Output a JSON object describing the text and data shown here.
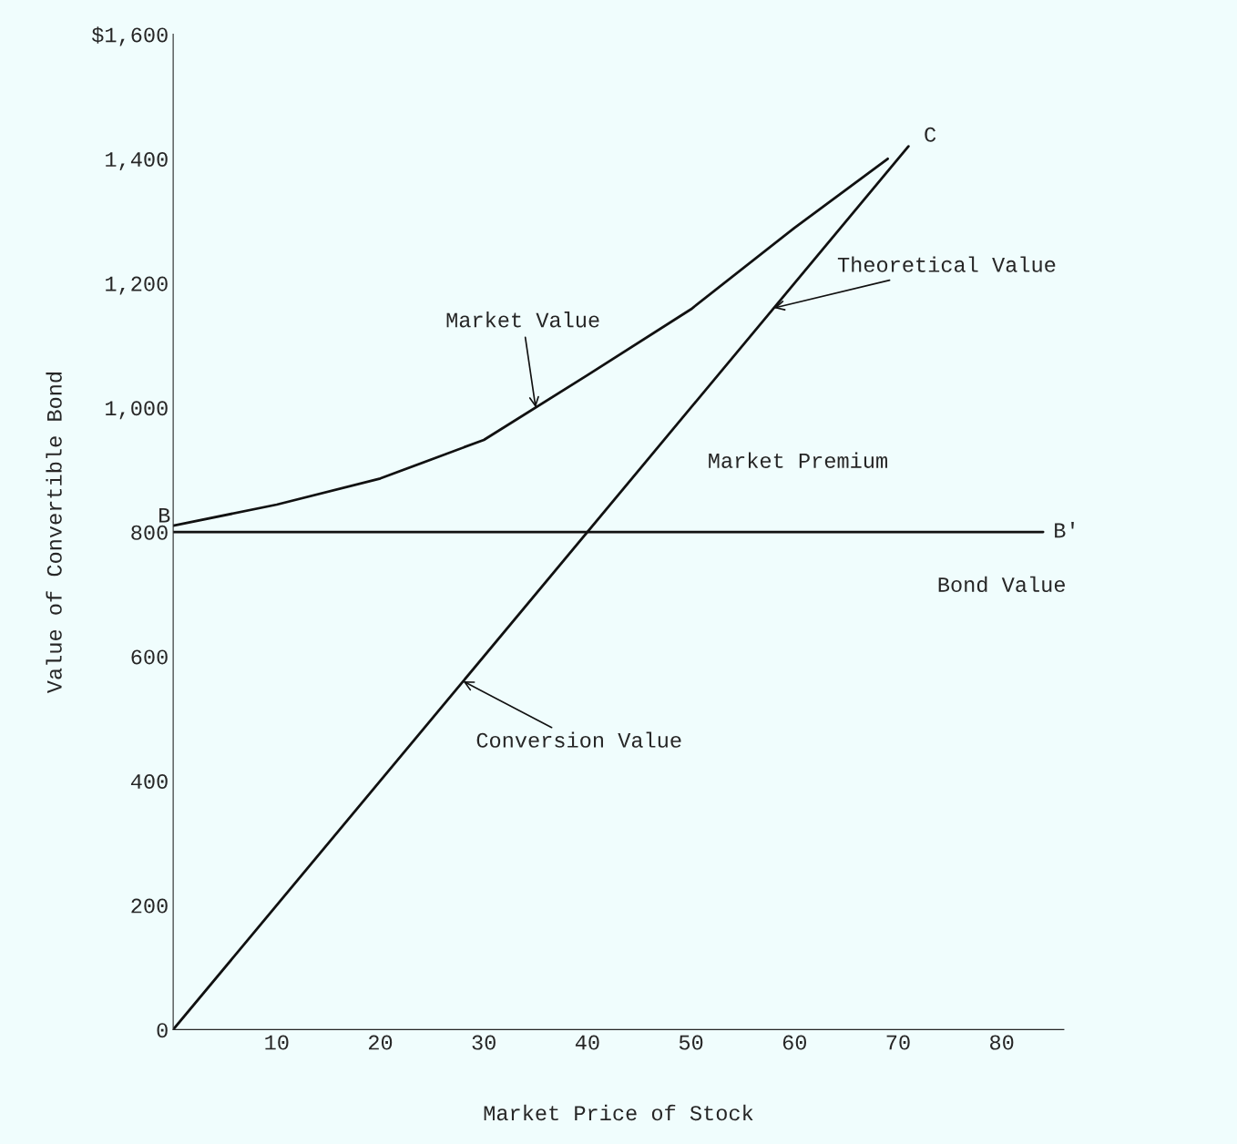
{
  "chart_data": {
    "type": "line",
    "xlabel": "Market Price of Stock",
    "ylabel": "Value of Convertible Bond",
    "xlim": [
      0,
      86
    ],
    "ylim": [
      0,
      1600
    ],
    "xticks": [
      10,
      20,
      30,
      40,
      50,
      60,
      70,
      80
    ],
    "yticks": [
      {
        "value": 0,
        "label": "0"
      },
      200,
      400,
      600,
      {
        "value": 800,
        "label": "800"
      },
      {
        "value": 1000,
        "label": "1,000"
      },
      {
        "value": 1200,
        "label": "1,200"
      },
      {
        "value": 1400,
        "label": "1,400"
      },
      {
        "value": 1600,
        "label": "$1,600"
      }
    ],
    "grid": false,
    "legend": false,
    "series": [
      {
        "color": "#111111",
        "x": [
          0,
          71
        ],
        "values": [
          0,
          1420
        ]
      },
      {
        "color": "#111111",
        "x": [
          0,
          84
        ],
        "values": [
          800,
          800
        ]
      },
      {
        "color": "#111111",
        "x": [
          0,
          10,
          20,
          30,
          40,
          50,
          60,
          69
        ],
        "values": [
          810,
          844,
          886,
          948,
          1052,
          1158,
          1289,
          1400
        ]
      }
    ],
    "annotations": [
      {
        "text": "B",
        "x": 0,
        "y": 800
      },
      {
        "text": "B'",
        "x": 84,
        "y": 800
      },
      {
        "text": "C",
        "x": 71,
        "y": 1420
      },
      {
        "text": "Market Value",
        "x": 35,
        "y": 1000
      },
      {
        "text": "Theoretical Value",
        "x": 58,
        "y": 1160
      },
      "Market Premium",
      {
        "text": "Conversion Value",
        "x": 28,
        "y": 560
      },
      {
        "text": "Bond Value",
        "x": 80,
        "y": 800
      }
    ]
  }
}
